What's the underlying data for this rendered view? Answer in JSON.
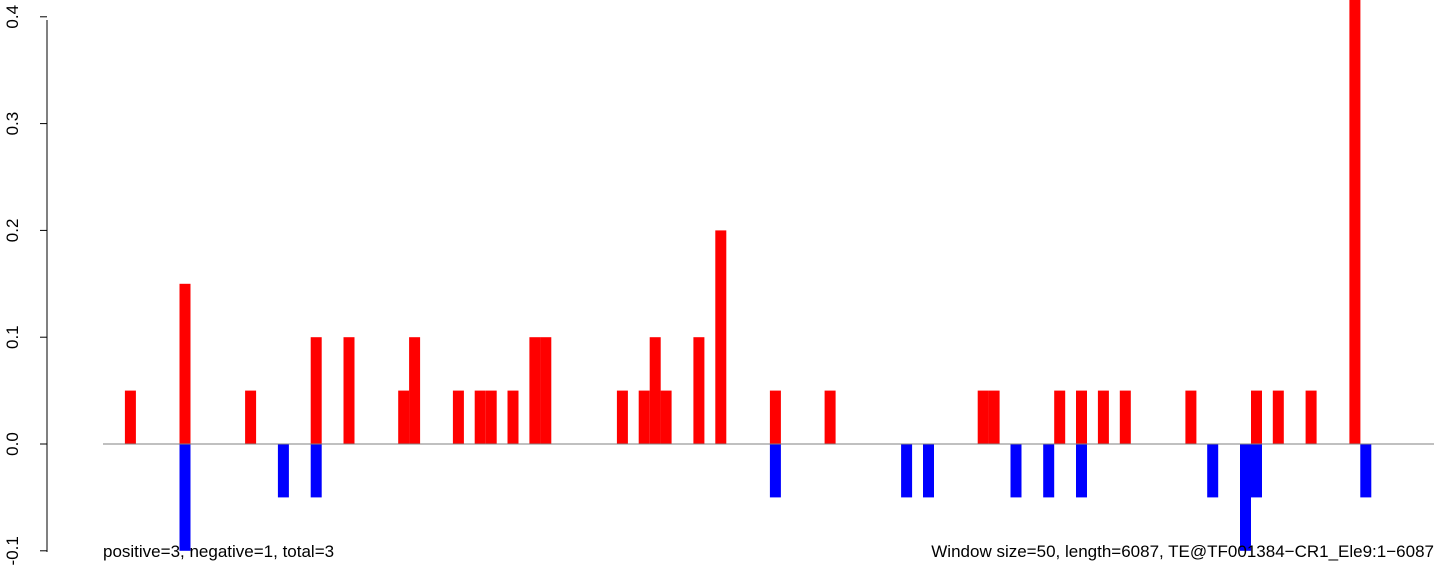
{
  "chart_data": {
    "type": "bar",
    "x_range": [
      0,
      6087
    ],
    "ylim": [
      -0.1,
      0.4
    ],
    "y_ticks": [
      -0.1,
      0.0,
      0.1,
      0.2,
      0.3,
      0.4
    ],
    "y_tick_labels": [
      "-0.1",
      "0.0",
      "0.1",
      "0.2",
      "0.3",
      "0.4"
    ],
    "window_size": 50,
    "baseline": 0,
    "colors": {
      "positive": "#ff0000",
      "negative": "#0000ff",
      "baseline": "#808080"
    },
    "series": [
      {
        "name": "positive",
        "x": [
          100,
          350,
          650,
          950,
          1100,
          1350,
          1400,
          1600,
          1700,
          1750,
          1850,
          1950,
          2000,
          2350,
          2450,
          2500,
          2550,
          2700,
          2800,
          3050,
          3300,
          4000,
          4050,
          4350,
          4450,
          4550,
          4650,
          4950,
          5250,
          5350,
          5500,
          5700
        ],
        "values": [
          0.05,
          0.15,
          0.05,
          0.1,
          0.1,
          0.05,
          0.1,
          0.05,
          0.05,
          0.05,
          0.05,
          0.1,
          0.1,
          0.05,
          0.05,
          0.1,
          0.05,
          0.1,
          0.2,
          0.05,
          0.05,
          0.05,
          0.05,
          0.05,
          0.05,
          0.05,
          0.05,
          0.05,
          0.05,
          0.05,
          0.05,
          0.42
        ]
      },
      {
        "name": "negative",
        "x": [
          350,
          800,
          950,
          3050,
          3650,
          3750,
          4150,
          4300,
          4450,
          5050,
          5200,
          5250,
          5750
        ],
        "values": [
          -0.1,
          -0.05,
          -0.05,
          -0.05,
          -0.05,
          -0.05,
          -0.05,
          -0.05,
          -0.05,
          -0.05,
          -0.1,
          -0.05,
          -0.05
        ]
      }
    ],
    "annotations": {
      "left": "positive=3, negative=1, total=3",
      "right": "Window size=50, length=6087, TE@TF001384−CR1_Ele9:1−6087"
    }
  }
}
